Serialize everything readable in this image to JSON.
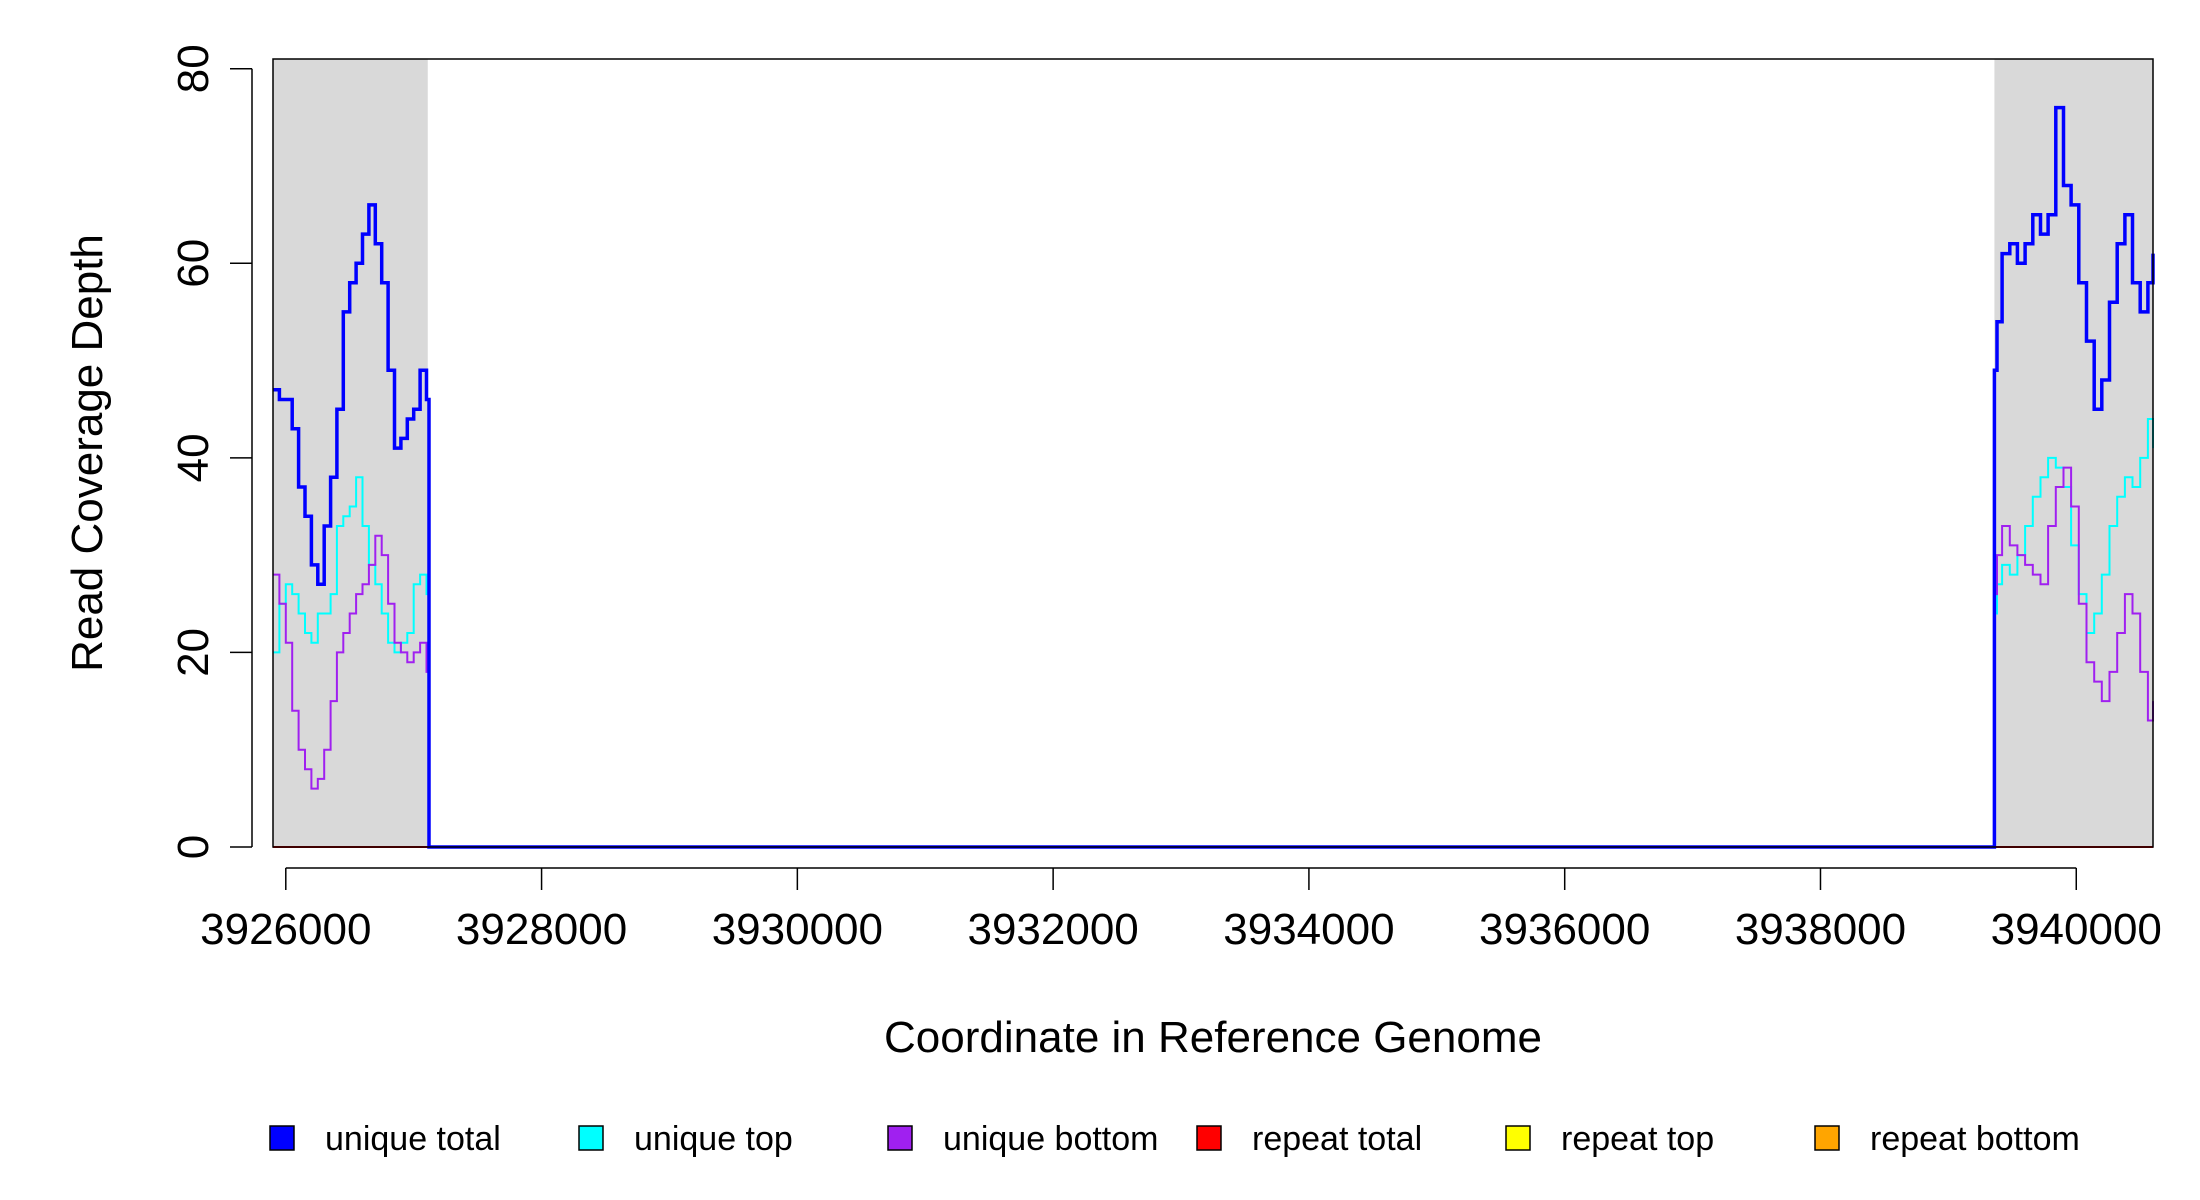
{
  "chart_data": {
    "type": "line",
    "title": "",
    "xlabel": "Coordinate in Reference Genome",
    "ylabel": "Read Coverage Depth",
    "xlim": [
      3925900,
      3940600
    ],
    "ylim": [
      0,
      81
    ],
    "x_ticks": [
      3926000,
      3928000,
      3930000,
      3932000,
      3934000,
      3936000,
      3938000,
      3940000
    ],
    "x_tick_labels": [
      "3926000",
      "3928000",
      "3930000",
      "3932000",
      "3934000",
      "3936000",
      "3938000",
      "3940000"
    ],
    "y_ticks": [
      0,
      20,
      40,
      60,
      80
    ],
    "y_tick_labels": [
      "0",
      "20",
      "40",
      "60",
      "80"
    ],
    "grid": false,
    "legend_position": "bottom",
    "shaded_regions": [
      {
        "x0": 3925900,
        "x1": 3927110,
        "color": "#d9d9d9"
      },
      {
        "x0": 3939360,
        "x1": 3940600,
        "color": "#d9d9d9"
      }
    ],
    "series": [
      {
        "name": "unique total",
        "color": "#0000ff",
        "x": [
          3925900,
          3925950,
          3926000,
          3926050,
          3926100,
          3926150,
          3926200,
          3926250,
          3926300,
          3926350,
          3926400,
          3926450,
          3926500,
          3926550,
          3926600,
          3926650,
          3926700,
          3926750,
          3926800,
          3926850,
          3926900,
          3926950,
          3927000,
          3927050,
          3927100,
          3927120,
          3927130,
          3939340,
          3939360,
          3939380,
          3939420,
          3939480,
          3939540,
          3939600,
          3939660,
          3939720,
          3939780,
          3939840,
          3939900,
          3939960,
          3940020,
          3940080,
          3940140,
          3940200,
          3940260,
          3940320,
          3940380,
          3940440,
          3940500,
          3940560,
          3940600
        ],
        "values": [
          47,
          46,
          46,
          43,
          37,
          34,
          29,
          27,
          33,
          38,
          45,
          55,
          58,
          60,
          63,
          66,
          62,
          58,
          49,
          41,
          42,
          44,
          45,
          49,
          46,
          0,
          0,
          0,
          49,
          54,
          61,
          62,
          60,
          62,
          65,
          63,
          65,
          76,
          68,
          66,
          58,
          52,
          45,
          48,
          56,
          62,
          65,
          58,
          55,
          58,
          61
        ]
      },
      {
        "name": "unique top",
        "color": "#00ffff",
        "x": [
          3925900,
          3925950,
          3926000,
          3926050,
          3926100,
          3926150,
          3926200,
          3926250,
          3926300,
          3926350,
          3926400,
          3926450,
          3926500,
          3926550,
          3926600,
          3926650,
          3926700,
          3926750,
          3926800,
          3926850,
          3926900,
          3926950,
          3927000,
          3927050,
          3927100,
          3927120,
          3927130,
          3939340,
          3939360,
          3939380,
          3939420,
          3939480,
          3939540,
          3939600,
          3939660,
          3939720,
          3939780,
          3939840,
          3939900,
          3939960,
          3940020,
          3940080,
          3940140,
          3940200,
          3940260,
          3940320,
          3940380,
          3940440,
          3940500,
          3940560,
          3940600
        ],
        "values": [
          20,
          25,
          27,
          26,
          24,
          22,
          21,
          24,
          24,
          26,
          33,
          34,
          35,
          38,
          33,
          29,
          27,
          24,
          21,
          20,
          21,
          22,
          27,
          28,
          26,
          0,
          0,
          0,
          24,
          27,
          29,
          28,
          30,
          33,
          36,
          38,
          40,
          39,
          37,
          31,
          26,
          22,
          24,
          28,
          33,
          36,
          38,
          37,
          40,
          44,
          41
        ]
      },
      {
        "name": "unique bottom",
        "color": "#a020f0",
        "x": [
          3925900,
          3925950,
          3926000,
          3926050,
          3926100,
          3926150,
          3926200,
          3926250,
          3926300,
          3926350,
          3926400,
          3926450,
          3926500,
          3926550,
          3926600,
          3926650,
          3926700,
          3926750,
          3926800,
          3926850,
          3926900,
          3926950,
          3927000,
          3927050,
          3927100,
          3927120,
          3927130,
          3939340,
          3939360,
          3939380,
          3939420,
          3939480,
          3939540,
          3939600,
          3939660,
          3939720,
          3939780,
          3939840,
          3939900,
          3939960,
          3940020,
          3940080,
          3940140,
          3940200,
          3940260,
          3940320,
          3940380,
          3940440,
          3940500,
          3940560,
          3940600
        ],
        "values": [
          28,
          25,
          21,
          14,
          10,
          8,
          6,
          7,
          10,
          15,
          20,
          22,
          24,
          26,
          27,
          29,
          32,
          30,
          25,
          21,
          20,
          19,
          20,
          21,
          18,
          0,
          0,
          0,
          26,
          30,
          33,
          31,
          30,
          29,
          28,
          27,
          33,
          37,
          39,
          35,
          25,
          19,
          17,
          15,
          18,
          22,
          26,
          24,
          18,
          13,
          15
        ]
      },
      {
        "name": "repeat total",
        "color": "#ff0000",
        "x": [
          3925900,
          3940600
        ],
        "values": [
          0,
          0
        ]
      },
      {
        "name": "repeat top",
        "color": "#ffff00",
        "x": [
          3925900,
          3940600
        ],
        "values": [
          0,
          0
        ]
      },
      {
        "name": "repeat bottom",
        "color": "#ffa500",
        "x": [
          3925900,
          3940600
        ],
        "values": [
          0,
          0
        ]
      }
    ]
  }
}
